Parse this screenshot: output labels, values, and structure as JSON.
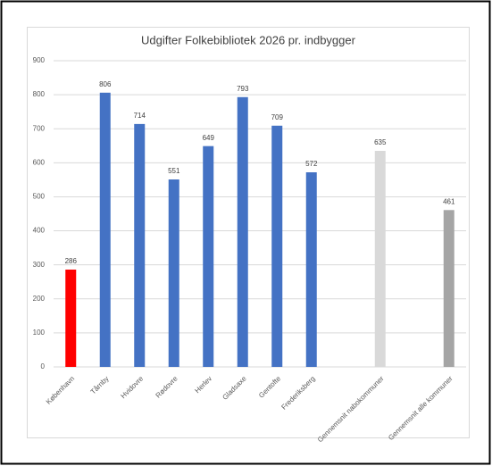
{
  "chart_data": {
    "type": "bar",
    "title": "Udgifter Folkebibliotek 2026 pr. indbygger",
    "categories": [
      "København",
      "Tårnby",
      "Hvidovre",
      "Rødovre",
      "Herlev",
      "Gladsaxe",
      "Gentofte",
      "Frederiksberg",
      null,
      "Gennemsnit nabokommuner",
      null,
      "Gennemsnit alle kommuner"
    ],
    "values": [
      286,
      806,
      714,
      551,
      649,
      793,
      709,
      572,
      null,
      635,
      null,
      461
    ],
    "colors": [
      "#ff0000",
      "#4472c4",
      "#4472c4",
      "#4472c4",
      "#4472c4",
      "#4472c4",
      "#4472c4",
      "#4472c4",
      null,
      "#d9d9d9",
      null,
      "#a5a5a5"
    ],
    "ylim": [
      0,
      900
    ],
    "yticks": [
      0,
      100,
      200,
      300,
      400,
      500,
      600,
      700,
      800,
      900
    ],
    "grid": true
  }
}
